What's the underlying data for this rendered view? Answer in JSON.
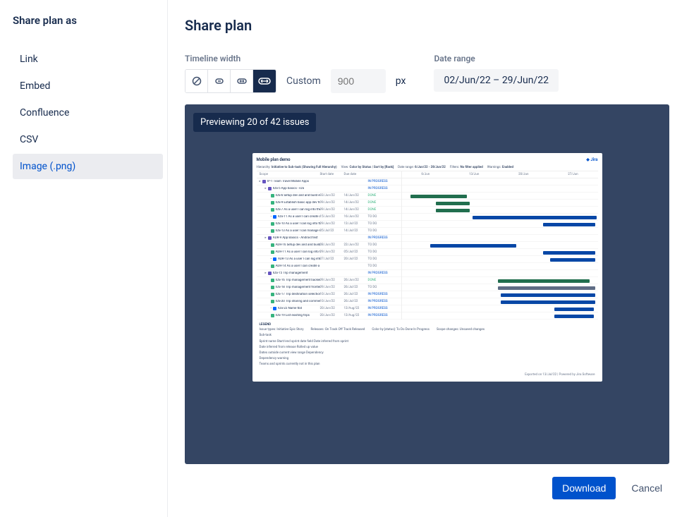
{
  "sidebar": {
    "title": "Share plan as",
    "items": [
      {
        "label": "Link"
      },
      {
        "label": "Embed"
      },
      {
        "label": "Confluence"
      },
      {
        "label": "CSV"
      },
      {
        "label": "Image (.png)"
      }
    ],
    "selected_index": 4
  },
  "page": {
    "title": "Share plan"
  },
  "controls": {
    "timeline_width_label": "Timeline width",
    "custom_label": "Custom",
    "px_placeholder": "900",
    "px_suffix": "px",
    "date_range_label": "Date range",
    "date_range_value": "02/Jun/22 – 29/Jun/22"
  },
  "preview": {
    "badge": "Previewing 20 of 42 issues",
    "title": "Mobile plan demo",
    "logo": "Jira",
    "meta": {
      "hierarchy_l": "Hierarchy:",
      "hierarchy_v": "Initiative to Sub-task (Showing Full Hierarchy)",
      "view_l": "View:",
      "view_v": "Color by Status | Sort by [Rank]",
      "daterange_l": "Date range:",
      "daterange_v": "6/Jun/22 - 28/Jun/22",
      "filters_l": "Filters:",
      "filters_v": "No filter applied",
      "warnings_l": "Warnings:",
      "warnings_v": "Enabled"
    },
    "columns": {
      "c1": "Scope",
      "c2": "Start date",
      "c3": "Due date",
      "c4": ""
    },
    "timeline_ticks": [
      "6/Jun",
      "13/Jun",
      "20/Jun",
      "27/Jun"
    ],
    "rows": [
      {
        "indent": 0,
        "type": "e",
        "key": "IP-1",
        "title": "Team Travel Mobile Apps",
        "start": "",
        "due": "",
        "status": "IN PROGRESS",
        "sc": "st-prog",
        "bar": null
      },
      {
        "indent": 1,
        "type": "e",
        "key": "IOS-5",
        "title": "App basics - iOS",
        "start": "",
        "due": "",
        "status": "IN PROGRESS",
        "sc": "st-prog",
        "bar": null
      },
      {
        "indent": 2,
        "type": "s",
        "key": "IOS-6",
        "title": "Setup dev and and build environment",
        "start": "03/Jun/22",
        "due": "14/Jun/22",
        "status": "DONE",
        "sc": "st-done",
        "bar": {
          "l": 12,
          "w": 80,
          "c": "bar-g"
        }
      },
      {
        "indent": 2,
        "type": "s",
        "key": "IOS-9",
        "title": "Establish basic app dev framework",
        "start": "09/Jun/22",
        "due": "14/Jun/22",
        "status": "DONE",
        "sc": "st-done",
        "bar": {
          "l": 48,
          "w": 48,
          "c": "bar-g"
        }
      },
      {
        "indent": 2,
        "type": "s",
        "key": "IOS-7",
        "title": "As a user I can log into the system",
        "start": "09/Jun/22",
        "due": "14/Jun/22",
        "status": "DONE",
        "sc": "st-done",
        "bar": {
          "l": 48,
          "w": 48,
          "c": "bar-g"
        }
      },
      {
        "indent": 2,
        "type": "k",
        "key": "IOS-11",
        "title": "As a user I can create a custom user",
        "start": "15/Jun/22",
        "due": "16/Jun/22",
        "status": "TO DO",
        "sc": "st-todo",
        "bar": {
          "l": 100,
          "w": 176,
          "c": "bar-b"
        }
      },
      {
        "indent": 2,
        "type": "s",
        "key": "IOS-10",
        "title": "As a user I can log into the system",
        "start": "29/Jun/22",
        "due": "12/Jul/22",
        "status": "TO DO",
        "sc": "st-todo",
        "bar": {
          "l": 200,
          "w": 74,
          "c": "bar-b"
        }
      },
      {
        "indent": 2,
        "type": "s",
        "key": "IOS-13",
        "title": "As a user I can manage my profile",
        "start": "05/Jul/22",
        "due": "14/Jul/22",
        "status": "TO DO",
        "sc": "st-todo",
        "bar": null
      },
      {
        "indent": 1,
        "type": "e",
        "key": "ADR-9",
        "title": "App Basics - Android test",
        "start": "",
        "due": "",
        "status": "IN PROGRESS",
        "sc": "st-prog",
        "bar": null
      },
      {
        "indent": 2,
        "type": "s",
        "key": "ADR-16",
        "title": "Setup dev and and build environment",
        "start": "08/Jun/22",
        "due": "22/Jun/22",
        "status": "TO DO",
        "sc": "st-todo",
        "bar": {
          "l": 40,
          "w": 122,
          "c": "bar-b"
        }
      },
      {
        "indent": 2,
        "type": "s",
        "key": "ADR-11",
        "title": "As a user I can log into the system",
        "start": "29/Jun/22",
        "due": "05/Jul/22",
        "status": "TO DO",
        "sc": "st-todo",
        "bar": {
          "l": 200,
          "w": 74,
          "c": "bar-b"
        }
      },
      {
        "indent": 2,
        "type": "k",
        "key": "ADR-13",
        "title": "As a user I can log into the system",
        "start": "07/Jul/22",
        "due": "20/Jul/22",
        "status": "TO DO",
        "sc": "st-todo",
        "bar": {
          "l": 210,
          "w": 64,
          "c": "bar-b"
        }
      },
      {
        "indent": 2,
        "type": "s",
        "key": "ADR-14",
        "title": "As a user I can create a custom user",
        "start": "",
        "due": "",
        "status": "TO DO",
        "sc": "st-todo",
        "bar": null
      },
      {
        "indent": 1,
        "type": "e",
        "key": "IOS-15",
        "title": "Trip management",
        "start": "",
        "due": "",
        "status": "IN PROGRESS",
        "sc": "st-prog",
        "bar": null
      },
      {
        "indent": 2,
        "type": "s",
        "key": "IOS-16",
        "title": "Trip management backend framework",
        "start": "09/Jun/22",
        "due": "26/Jun/22",
        "status": "DONE",
        "sc": "st-done",
        "bar": {
          "l": 136,
          "w": 130,
          "c": "bar-g"
        }
      },
      {
        "indent": 2,
        "type": "s",
        "key": "IOS-18",
        "title": "Trip management frontend framework",
        "start": "09/Jun/22",
        "due": "26/Jul/22",
        "status": "TO DO",
        "sc": "st-todo",
        "bar": {
          "l": 136,
          "w": 138,
          "c": "bar-gray"
        }
      },
      {
        "indent": 2,
        "type": "s",
        "key": "IOS-17",
        "title": "Trip destination selection - single destination",
        "start": "10/Jun/22",
        "due": "26/Jul/22",
        "status": "IN PROGRESS",
        "sc": "st-prog",
        "bar": {
          "l": 140,
          "w": 134,
          "c": "bar-b"
        }
      },
      {
        "indent": 2,
        "type": "s",
        "key": "IOS-20",
        "title": "Trip sharing and commenting",
        "start": "10/Jun/22",
        "due": "26/Jul/22",
        "status": "IN PROGRESS",
        "sc": "st-prog",
        "bar": {
          "l": 140,
          "w": 134,
          "c": "bar-b"
        }
      },
      {
        "indent": 2,
        "type": "k",
        "key": "IOS-22",
        "title": "Name tbd",
        "start": "20/Jun/22",
        "due": "12/Aug/22",
        "status": "IN PROGRESS",
        "sc": "st-prog",
        "bar": {
          "l": 216,
          "w": 56,
          "c": "bar-b"
        }
      },
      {
        "indent": 2,
        "type": "s",
        "key": "IOS-19",
        "title": "List existing trips",
        "start": "20/Jun/22",
        "due": "12/Aug/22",
        "status": "IN PROGRESS",
        "sc": "st-prog",
        "bar": {
          "l": 216,
          "w": 56,
          "c": "bar-b"
        }
      }
    ],
    "legend_label": "LEGEND",
    "legend": {
      "issuetypes_l": "Issue types:",
      "issuetypes_v": "Initiative  Epic  Story",
      "sub": "Sub-task",
      "releases_l": "Releases:",
      "releases_v": "On Track  Off Track  Released",
      "colorby_l": "Color by [status]:",
      "colorby_v": "To Do  Done  In Progress",
      "scope_l": "Scope changes:",
      "scope_v": "Unsaved changes",
      "si1": "Sprint name  Start/end sprint date field  Date inferred from sprint",
      "si2": "Date inferred from release  Rolled up value",
      "si3": "Dates outside current view range  Dependency",
      "si4": "Dependency warning",
      "si5": "Teams and sprints currently not in this plan"
    },
    "footer": "Exported on 13/Jul/22 | Powered by Jira Software"
  },
  "actions": {
    "primary": "Download",
    "cancel": "Cancel"
  },
  "colors": {
    "accent": "#0052cc",
    "sidebar_hover": "#ebecf0",
    "preview_bg": "#344563",
    "badge_bg": "#172B4D"
  }
}
